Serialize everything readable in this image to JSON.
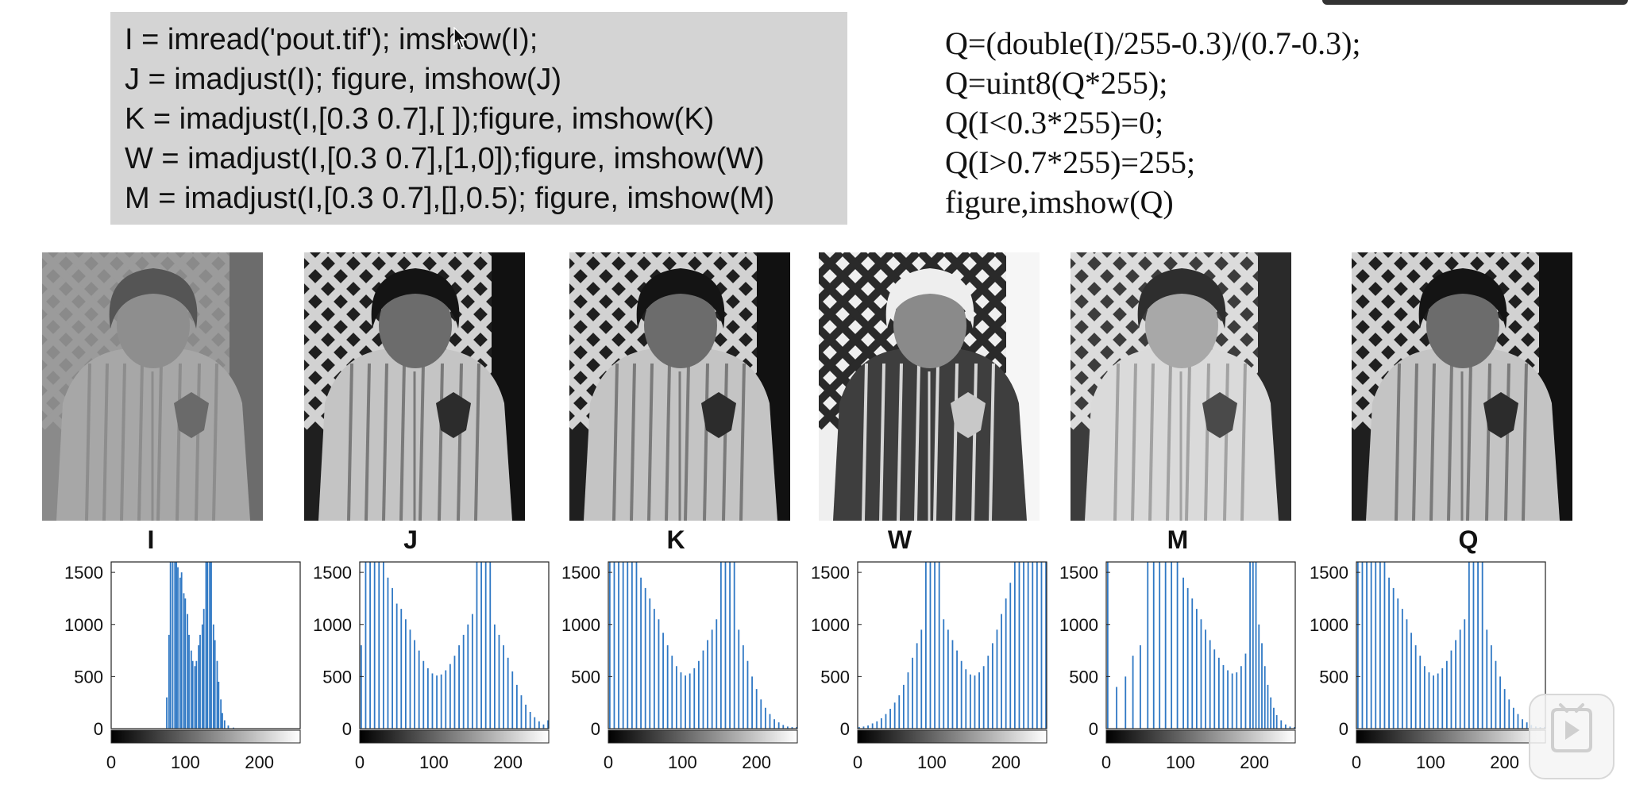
{
  "code_lines": [
    "I = imread('pout.tif'); imshow(I);",
    "J = imadjust(I); figure, imshow(J)",
    "K = imadjust(I,[0.3 0.7],[ ]);figure, imshow(K)",
    "W = imadjust(I,[0.3 0.7],[1,0]);figure, imshow(W)",
    "M = imadjust(I,[0.3 0.7],[],0.5); figure, imshow(M)"
  ],
  "formula_lines": [
    "Q=(double(I)/255-0.3)/(0.7-0.3);",
    "Q=uint8(Q*255);",
    "Q(I<0.3*255)=0;",
    "Q(I>0.7*255)=255;",
    "figure,imshow(Q)"
  ],
  "colors": {
    "bar": "#2f78c4",
    "code_bg": "#d4d4d4"
  },
  "icons": {
    "cursor": "mouse-cursor-icon",
    "play": "play-icon"
  },
  "images": [
    {
      "label": "I",
      "tone": "low-contrast"
    },
    {
      "label": "J",
      "tone": "stretched"
    },
    {
      "label": "K",
      "tone": "stretched"
    },
    {
      "label": "W",
      "tone": "inverted"
    },
    {
      "label": "M",
      "tone": "brightened"
    },
    {
      "label": "Q",
      "tone": "stretched"
    }
  ],
  "chart_data": [
    {
      "type": "bar",
      "title": "I",
      "x_ticks": [
        0,
        100,
        200
      ],
      "y_ticks": [
        0,
        500,
        1000,
        1500
      ],
      "xlim": [
        0,
        255
      ],
      "ylim": [
        0,
        1600
      ],
      "bins": [
        {
          "x": 75,
          "y": 300
        },
        {
          "x": 78,
          "y": 900
        },
        {
          "x": 80,
          "y": 1600
        },
        {
          "x": 83,
          "y": 1600
        },
        {
          "x": 86,
          "y": 1600
        },
        {
          "x": 88,
          "y": 1600
        },
        {
          "x": 90,
          "y": 1550
        },
        {
          "x": 93,
          "y": 1450
        },
        {
          "x": 95,
          "y": 1500
        },
        {
          "x": 98,
          "y": 1300
        },
        {
          "x": 100,
          "y": 1250
        },
        {
          "x": 103,
          "y": 1100
        },
        {
          "x": 105,
          "y": 900
        },
        {
          "x": 108,
          "y": 750
        },
        {
          "x": 110,
          "y": 650
        },
        {
          "x": 113,
          "y": 600
        },
        {
          "x": 115,
          "y": 650
        },
        {
          "x": 118,
          "y": 800
        },
        {
          "x": 120,
          "y": 900
        },
        {
          "x": 123,
          "y": 1000
        },
        {
          "x": 125,
          "y": 1150
        },
        {
          "x": 128,
          "y": 1600
        },
        {
          "x": 130,
          "y": 1600
        },
        {
          "x": 133,
          "y": 1600
        },
        {
          "x": 135,
          "y": 1600
        },
        {
          "x": 138,
          "y": 1000
        },
        {
          "x": 140,
          "y": 850
        },
        {
          "x": 143,
          "y": 650
        },
        {
          "x": 145,
          "y": 450
        },
        {
          "x": 148,
          "y": 280
        },
        {
          "x": 150,
          "y": 150
        },
        {
          "x": 153,
          "y": 80
        },
        {
          "x": 158,
          "y": 30
        },
        {
          "x": 165,
          "y": 10
        }
      ]
    },
    {
      "type": "bar",
      "title": "J",
      "x_ticks": [
        0,
        100,
        200
      ],
      "y_ticks": [
        0,
        500,
        1000,
        1500
      ],
      "xlim": [
        0,
        255
      ],
      "ylim": [
        0,
        1600
      ],
      "bins": [
        {
          "x": 2,
          "y": 800
        },
        {
          "x": 8,
          "y": 1600
        },
        {
          "x": 14,
          "y": 1600
        },
        {
          "x": 20,
          "y": 1600
        },
        {
          "x": 26,
          "y": 1600
        },
        {
          "x": 32,
          "y": 1600
        },
        {
          "x": 38,
          "y": 1450
        },
        {
          "x": 44,
          "y": 1350
        },
        {
          "x": 50,
          "y": 1200
        },
        {
          "x": 56,
          "y": 1150
        },
        {
          "x": 62,
          "y": 1050
        },
        {
          "x": 68,
          "y": 950
        },
        {
          "x": 74,
          "y": 850
        },
        {
          "x": 80,
          "y": 750
        },
        {
          "x": 86,
          "y": 650
        },
        {
          "x": 92,
          "y": 580
        },
        {
          "x": 98,
          "y": 530
        },
        {
          "x": 104,
          "y": 510
        },
        {
          "x": 110,
          "y": 520
        },
        {
          "x": 116,
          "y": 560
        },
        {
          "x": 122,
          "y": 620
        },
        {
          "x": 128,
          "y": 700
        },
        {
          "x": 134,
          "y": 800
        },
        {
          "x": 140,
          "y": 900
        },
        {
          "x": 146,
          "y": 1000
        },
        {
          "x": 152,
          "y": 1100
        },
        {
          "x": 158,
          "y": 1600
        },
        {
          "x": 164,
          "y": 1600
        },
        {
          "x": 170,
          "y": 1600
        },
        {
          "x": 176,
          "y": 1600
        },
        {
          "x": 182,
          "y": 1000
        },
        {
          "x": 188,
          "y": 900
        },
        {
          "x": 194,
          "y": 800
        },
        {
          "x": 200,
          "y": 680
        },
        {
          "x": 206,
          "y": 550
        },
        {
          "x": 212,
          "y": 420
        },
        {
          "x": 218,
          "y": 320
        },
        {
          "x": 224,
          "y": 230
        },
        {
          "x": 230,
          "y": 160
        },
        {
          "x": 236,
          "y": 110
        },
        {
          "x": 242,
          "y": 70
        },
        {
          "x": 248,
          "y": 40
        },
        {
          "x": 254,
          "y": 80
        }
      ]
    },
    {
      "type": "bar",
      "title": "K",
      "x_ticks": [
        0,
        100,
        200
      ],
      "y_ticks": [
        0,
        500,
        1000,
        1500
      ],
      "xlim": [
        0,
        255
      ],
      "ylim": [
        0,
        1600
      ],
      "bins": [
        {
          "x": 2,
          "y": 1600
        },
        {
          "x": 8,
          "y": 1600
        },
        {
          "x": 14,
          "y": 1600
        },
        {
          "x": 20,
          "y": 1600
        },
        {
          "x": 26,
          "y": 1600
        },
        {
          "x": 32,
          "y": 1600
        },
        {
          "x": 38,
          "y": 1600
        },
        {
          "x": 44,
          "y": 1450
        },
        {
          "x": 50,
          "y": 1350
        },
        {
          "x": 56,
          "y": 1250
        },
        {
          "x": 62,
          "y": 1150
        },
        {
          "x": 68,
          "y": 1050
        },
        {
          "x": 74,
          "y": 920
        },
        {
          "x": 80,
          "y": 800
        },
        {
          "x": 86,
          "y": 700
        },
        {
          "x": 92,
          "y": 600
        },
        {
          "x": 98,
          "y": 540
        },
        {
          "x": 104,
          "y": 510
        },
        {
          "x": 110,
          "y": 530
        },
        {
          "x": 116,
          "y": 580
        },
        {
          "x": 122,
          "y": 650
        },
        {
          "x": 128,
          "y": 750
        },
        {
          "x": 134,
          "y": 850
        },
        {
          "x": 140,
          "y": 950
        },
        {
          "x": 146,
          "y": 1050
        },
        {
          "x": 152,
          "y": 1600
        },
        {
          "x": 158,
          "y": 1600
        },
        {
          "x": 164,
          "y": 1600
        },
        {
          "x": 170,
          "y": 1600
        },
        {
          "x": 176,
          "y": 950
        },
        {
          "x": 182,
          "y": 800
        },
        {
          "x": 188,
          "y": 650
        },
        {
          "x": 194,
          "y": 500
        },
        {
          "x": 200,
          "y": 380
        },
        {
          "x": 206,
          "y": 280
        },
        {
          "x": 212,
          "y": 200
        },
        {
          "x": 218,
          "y": 140
        },
        {
          "x": 224,
          "y": 90
        },
        {
          "x": 230,
          "y": 60
        },
        {
          "x": 236,
          "y": 35
        },
        {
          "x": 242,
          "y": 20
        },
        {
          "x": 248,
          "y": 15
        },
        {
          "x": 254,
          "y": 15
        }
      ]
    },
    {
      "type": "bar",
      "title": "W",
      "x_ticks": [
        0,
        100,
        200
      ],
      "y_ticks": [
        0,
        500,
        1000,
        1500
      ],
      "xlim": [
        0,
        255
      ],
      "ylim": [
        0,
        1600
      ],
      "bins": [
        {
          "x": 2,
          "y": 15
        },
        {
          "x": 8,
          "y": 20
        },
        {
          "x": 14,
          "y": 30
        },
        {
          "x": 20,
          "y": 50
        },
        {
          "x": 26,
          "y": 70
        },
        {
          "x": 32,
          "y": 100
        },
        {
          "x": 38,
          "y": 140
        },
        {
          "x": 44,
          "y": 190
        },
        {
          "x": 50,
          "y": 250
        },
        {
          "x": 56,
          "y": 320
        },
        {
          "x": 62,
          "y": 420
        },
        {
          "x": 68,
          "y": 540
        },
        {
          "x": 74,
          "y": 680
        },
        {
          "x": 80,
          "y": 820
        },
        {
          "x": 86,
          "y": 950
        },
        {
          "x": 92,
          "y": 1600
        },
        {
          "x": 98,
          "y": 1600
        },
        {
          "x": 104,
          "y": 1600
        },
        {
          "x": 110,
          "y": 1600
        },
        {
          "x": 116,
          "y": 1050
        },
        {
          "x": 122,
          "y": 950
        },
        {
          "x": 128,
          "y": 850
        },
        {
          "x": 134,
          "y": 750
        },
        {
          "x": 140,
          "y": 650
        },
        {
          "x": 146,
          "y": 570
        },
        {
          "x": 152,
          "y": 520
        },
        {
          "x": 158,
          "y": 510
        },
        {
          "x": 164,
          "y": 540
        },
        {
          "x": 170,
          "y": 600
        },
        {
          "x": 176,
          "y": 700
        },
        {
          "x": 182,
          "y": 820
        },
        {
          "x": 188,
          "y": 950
        },
        {
          "x": 194,
          "y": 1100
        },
        {
          "x": 200,
          "y": 1250
        },
        {
          "x": 206,
          "y": 1400
        },
        {
          "x": 212,
          "y": 1600
        },
        {
          "x": 218,
          "y": 1600
        },
        {
          "x": 224,
          "y": 1600
        },
        {
          "x": 230,
          "y": 1600
        },
        {
          "x": 236,
          "y": 1600
        },
        {
          "x": 242,
          "y": 1600
        },
        {
          "x": 248,
          "y": 1600
        },
        {
          "x": 254,
          "y": 1600
        }
      ]
    },
    {
      "type": "bar",
      "title": "M",
      "x_ticks": [
        0,
        100,
        200
      ],
      "y_ticks": [
        0,
        500,
        1000,
        1500
      ],
      "xlim": [
        0,
        255
      ],
      "ylim": [
        0,
        1600
      ],
      "bins": [
        {
          "x": 2,
          "y": 1600
        },
        {
          "x": 14,
          "y": 400
        },
        {
          "x": 26,
          "y": 500
        },
        {
          "x": 36,
          "y": 700
        },
        {
          "x": 46,
          "y": 800
        },
        {
          "x": 56,
          "y": 1600
        },
        {
          "x": 64,
          "y": 1600
        },
        {
          "x": 72,
          "y": 1600
        },
        {
          "x": 80,
          "y": 1600
        },
        {
          "x": 88,
          "y": 1600
        },
        {
          "x": 96,
          "y": 1600
        },
        {
          "x": 104,
          "y": 1450
        },
        {
          "x": 110,
          "y": 1350
        },
        {
          "x": 116,
          "y": 1250
        },
        {
          "x": 122,
          "y": 1150
        },
        {
          "x": 128,
          "y": 1050
        },
        {
          "x": 134,
          "y": 950
        },
        {
          "x": 140,
          "y": 850
        },
        {
          "x": 146,
          "y": 760
        },
        {
          "x": 152,
          "y": 680
        },
        {
          "x": 158,
          "y": 610
        },
        {
          "x": 164,
          "y": 560
        },
        {
          "x": 170,
          "y": 530
        },
        {
          "x": 176,
          "y": 540
        },
        {
          "x": 182,
          "y": 600
        },
        {
          "x": 188,
          "y": 720
        },
        {
          "x": 194,
          "y": 1600
        },
        {
          "x": 198,
          "y": 1600
        },
        {
          "x": 202,
          "y": 1600
        },
        {
          "x": 206,
          "y": 1000
        },
        {
          "x": 210,
          "y": 820
        },
        {
          "x": 214,
          "y": 600
        },
        {
          "x": 218,
          "y": 420
        },
        {
          "x": 222,
          "y": 300
        },
        {
          "x": 226,
          "y": 200
        },
        {
          "x": 230,
          "y": 130
        },
        {
          "x": 236,
          "y": 80
        },
        {
          "x": 242,
          "y": 40
        },
        {
          "x": 248,
          "y": 20
        },
        {
          "x": 254,
          "y": 15
        }
      ]
    },
    {
      "type": "bar",
      "title": "Q",
      "x_ticks": [
        0,
        100,
        200
      ],
      "y_ticks": [
        0,
        500,
        1000,
        1500
      ],
      "xlim": [
        0,
        255
      ],
      "ylim": [
        0,
        1600
      ],
      "bins": [
        {
          "x": 2,
          "y": 1600
        },
        {
          "x": 8,
          "y": 1600
        },
        {
          "x": 14,
          "y": 1600
        },
        {
          "x": 20,
          "y": 1600
        },
        {
          "x": 26,
          "y": 1600
        },
        {
          "x": 32,
          "y": 1600
        },
        {
          "x": 38,
          "y": 1600
        },
        {
          "x": 44,
          "y": 1450
        },
        {
          "x": 50,
          "y": 1350
        },
        {
          "x": 56,
          "y": 1250
        },
        {
          "x": 62,
          "y": 1150
        },
        {
          "x": 68,
          "y": 1050
        },
        {
          "x": 74,
          "y": 920
        },
        {
          "x": 80,
          "y": 800
        },
        {
          "x": 86,
          "y": 700
        },
        {
          "x": 92,
          "y": 600
        },
        {
          "x": 98,
          "y": 540
        },
        {
          "x": 104,
          "y": 510
        },
        {
          "x": 110,
          "y": 530
        },
        {
          "x": 116,
          "y": 580
        },
        {
          "x": 122,
          "y": 650
        },
        {
          "x": 128,
          "y": 750
        },
        {
          "x": 134,
          "y": 850
        },
        {
          "x": 140,
          "y": 950
        },
        {
          "x": 146,
          "y": 1050
        },
        {
          "x": 152,
          "y": 1600
        },
        {
          "x": 158,
          "y": 1600
        },
        {
          "x": 164,
          "y": 1600
        },
        {
          "x": 170,
          "y": 1600
        },
        {
          "x": 176,
          "y": 950
        },
        {
          "x": 182,
          "y": 800
        },
        {
          "x": 188,
          "y": 650
        },
        {
          "x": 194,
          "y": 500
        },
        {
          "x": 200,
          "y": 380
        },
        {
          "x": 206,
          "y": 280
        },
        {
          "x": 212,
          "y": 200
        },
        {
          "x": 218,
          "y": 140
        },
        {
          "x": 224,
          "y": 90
        },
        {
          "x": 230,
          "y": 60
        },
        {
          "x": 236,
          "y": 35
        },
        {
          "x": 242,
          "y": 20
        },
        {
          "x": 248,
          "y": 15
        },
        {
          "x": 254,
          "y": 15
        }
      ]
    }
  ]
}
